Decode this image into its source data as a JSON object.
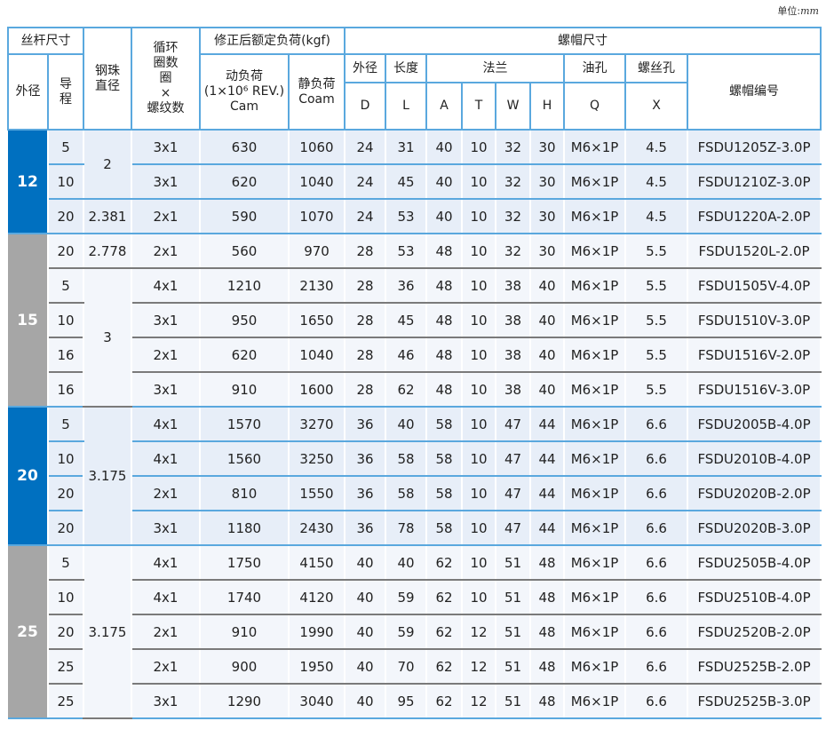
{
  "unit_label": "单位:",
  "unit_value": "mm",
  "colors": {
    "blue": "#0070c0",
    "gray": "#a6a6a6"
  },
  "header": {
    "screw_size": "丝杆尺寸",
    "screw_od": "外径",
    "lead": "导程",
    "ball_dia": "钢珠直径",
    "circuits": "循环圈数圈×螺纹数",
    "circuits_lines": [
      "循环",
      "圈数",
      "圈",
      "×",
      "螺纹数"
    ],
    "rated_load": "修正后额定负荷(kgf)",
    "dynamic": [
      "动负荷",
      "(1×10⁶ REV.)",
      "Cam"
    ],
    "static": [
      "静负荷",
      "Coam"
    ],
    "nut_size": "螺帽尺寸",
    "nut_od": "外径",
    "length": "长度",
    "flange": "法兰",
    "oil_hole": "油孔",
    "screw_hole": "螺丝孔",
    "nut_no": "螺帽编号",
    "D": "D",
    "L": "L",
    "A": "A",
    "T": "T",
    "W": "W",
    "H": "H",
    "Q": "Q",
    "X": "X"
  },
  "groups": [
    {
      "od": "12",
      "color": "blue",
      "rows": [
        {
          "lead": "5",
          "ball": "2",
          "ball_span": 2,
          "circ": "3x1",
          "cam": "630",
          "coam": "1060",
          "D": "24",
          "L": "31",
          "A": "40",
          "T": "10",
          "W": "32",
          "H": "30",
          "Q": "M6×1P",
          "X": "4.5",
          "no": "FSDU1205Z-3.0P"
        },
        {
          "lead": "10",
          "circ": "3x1",
          "cam": "620",
          "coam": "1040",
          "D": "24",
          "L": "45",
          "A": "40",
          "T": "10",
          "W": "32",
          "H": "30",
          "Q": "M6×1P",
          "X": "4.5",
          "no": "FSDU1210Z-3.0P"
        },
        {
          "lead": "20",
          "ball": "2.381",
          "ball_span": 1,
          "circ": "2x1",
          "cam": "590",
          "coam": "1070",
          "D": "24",
          "L": "53",
          "A": "40",
          "T": "10",
          "W": "32",
          "H": "30",
          "Q": "M6×1P",
          "X": "4.5",
          "no": "FSDU1220A-2.0P"
        }
      ]
    },
    {
      "od": "15",
      "color": "gray",
      "rows": [
        {
          "lead": "20",
          "ball": "2.778",
          "ball_span": 1,
          "circ": "2x1",
          "cam": "560",
          "coam": "970",
          "D": "28",
          "L": "53",
          "A": "48",
          "T": "10",
          "W": "32",
          "H": "30",
          "Q": "M6×1P",
          "X": "5.5",
          "no": "FSDU1520L-2.0P"
        },
        {
          "lead": "5",
          "ball": "3",
          "ball_span": 4,
          "circ": "4x1",
          "cam": "1210",
          "coam": "2130",
          "D": "28",
          "L": "36",
          "A": "48",
          "T": "10",
          "W": "38",
          "H": "40",
          "Q": "M6×1P",
          "X": "5.5",
          "no": "FSDU1505V-4.0P"
        },
        {
          "lead": "10",
          "circ": "3x1",
          "cam": "950",
          "coam": "1650",
          "D": "28",
          "L": "45",
          "A": "48",
          "T": "10",
          "W": "38",
          "H": "40",
          "Q": "M6×1P",
          "X": "5.5",
          "no": "FSDU1510V-3.0P"
        },
        {
          "lead": "16",
          "circ": "2x1",
          "cam": "620",
          "coam": "1040",
          "D": "28",
          "L": "46",
          "A": "48",
          "T": "10",
          "W": "38",
          "H": "40",
          "Q": "M6×1P",
          "X": "5.5",
          "no": "FSDU1516V-2.0P"
        },
        {
          "lead": "16",
          "circ": "3x1",
          "cam": "910",
          "coam": "1600",
          "D": "28",
          "L": "62",
          "A": "48",
          "T": "10",
          "W": "38",
          "H": "40",
          "Q": "M6×1P",
          "X": "5.5",
          "no": "FSDU1516V-3.0P"
        }
      ]
    },
    {
      "od": "20",
      "color": "blue",
      "rows": [
        {
          "lead": "5",
          "ball": "3.175",
          "ball_span": 4,
          "circ": "4x1",
          "cam": "1570",
          "coam": "3270",
          "D": "36",
          "L": "40",
          "A": "58",
          "T": "10",
          "W": "47",
          "H": "44",
          "Q": "M6×1P",
          "X": "6.6",
          "no": "FSDU2005B-4.0P"
        },
        {
          "lead": "10",
          "circ": "4x1",
          "cam": "1560",
          "coam": "3250",
          "D": "36",
          "L": "58",
          "A": "58",
          "T": "10",
          "W": "47",
          "H": "44",
          "Q": "M6×1P",
          "X": "6.6",
          "no": "FSDU2010B-4.0P"
        },
        {
          "lead": "20",
          "circ": "2x1",
          "cam": "810",
          "coam": "1550",
          "D": "36",
          "L": "58",
          "A": "58",
          "T": "10",
          "W": "47",
          "H": "44",
          "Q": "M6×1P",
          "X": "6.6",
          "no": "FSDU2020B-2.0P"
        },
        {
          "lead": "20",
          "circ": "3x1",
          "cam": "1180",
          "coam": "2430",
          "D": "36",
          "L": "78",
          "A": "58",
          "T": "10",
          "W": "47",
          "H": "44",
          "Q": "M6×1P",
          "X": "6.6",
          "no": "FSDU2020B-3.0P"
        }
      ]
    },
    {
      "od": "25",
      "color": "gray",
      "rows": [
        {
          "lead": "5",
          "ball": "3.175",
          "ball_span": 5,
          "circ": "4x1",
          "cam": "1750",
          "coam": "4150",
          "D": "40",
          "L": "40",
          "A": "62",
          "T": "10",
          "W": "51",
          "H": "48",
          "Q": "M6×1P",
          "X": "6.6",
          "no": "FSDU2505B-4.0P"
        },
        {
          "lead": "10",
          "circ": "4x1",
          "cam": "1740",
          "coam": "4120",
          "D": "40",
          "L": "59",
          "A": "62",
          "T": "10",
          "W": "51",
          "H": "48",
          "Q": "M6×1P",
          "X": "6.6",
          "no": "FSDU2510B-4.0P"
        },
        {
          "lead": "20",
          "circ": "2x1",
          "cam": "910",
          "coam": "1990",
          "D": "40",
          "L": "59",
          "A": "62",
          "T": "12",
          "W": "51",
          "H": "48",
          "Q": "M6×1P",
          "X": "6.6",
          "no": "FSDU2520B-2.0P"
        },
        {
          "lead": "25",
          "circ": "2x1",
          "cam": "900",
          "coam": "1950",
          "D": "40",
          "L": "70",
          "A": "62",
          "T": "12",
          "W": "51",
          "H": "48",
          "Q": "M6×1P",
          "X": "6.6",
          "no": "FSDU2525B-2.0P"
        },
        {
          "lead": "25",
          "circ": "3x1",
          "cam": "1290",
          "coam": "3040",
          "D": "40",
          "L": "95",
          "A": "62",
          "T": "12",
          "W": "51",
          "H": "48",
          "Q": "M6×1P",
          "X": "6.6",
          "no": "FSDU2525B-3.0P"
        }
      ]
    }
  ]
}
